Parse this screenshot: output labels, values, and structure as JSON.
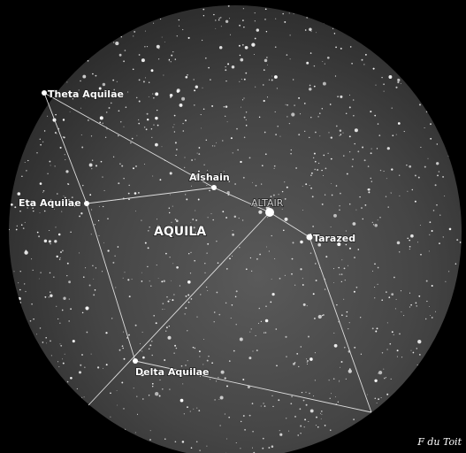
{
  "constellation": "AQUILA",
  "stars": [
    {
      "label": "Theta Aquilae"
    },
    {
      "label": "Alshain"
    },
    {
      "label": "ALTAIR"
    },
    {
      "label": "Eta Aquilae"
    },
    {
      "label": "Tarazed"
    },
    {
      "label": "Delta Aquilae"
    }
  ],
  "credit": "F du Toit"
}
